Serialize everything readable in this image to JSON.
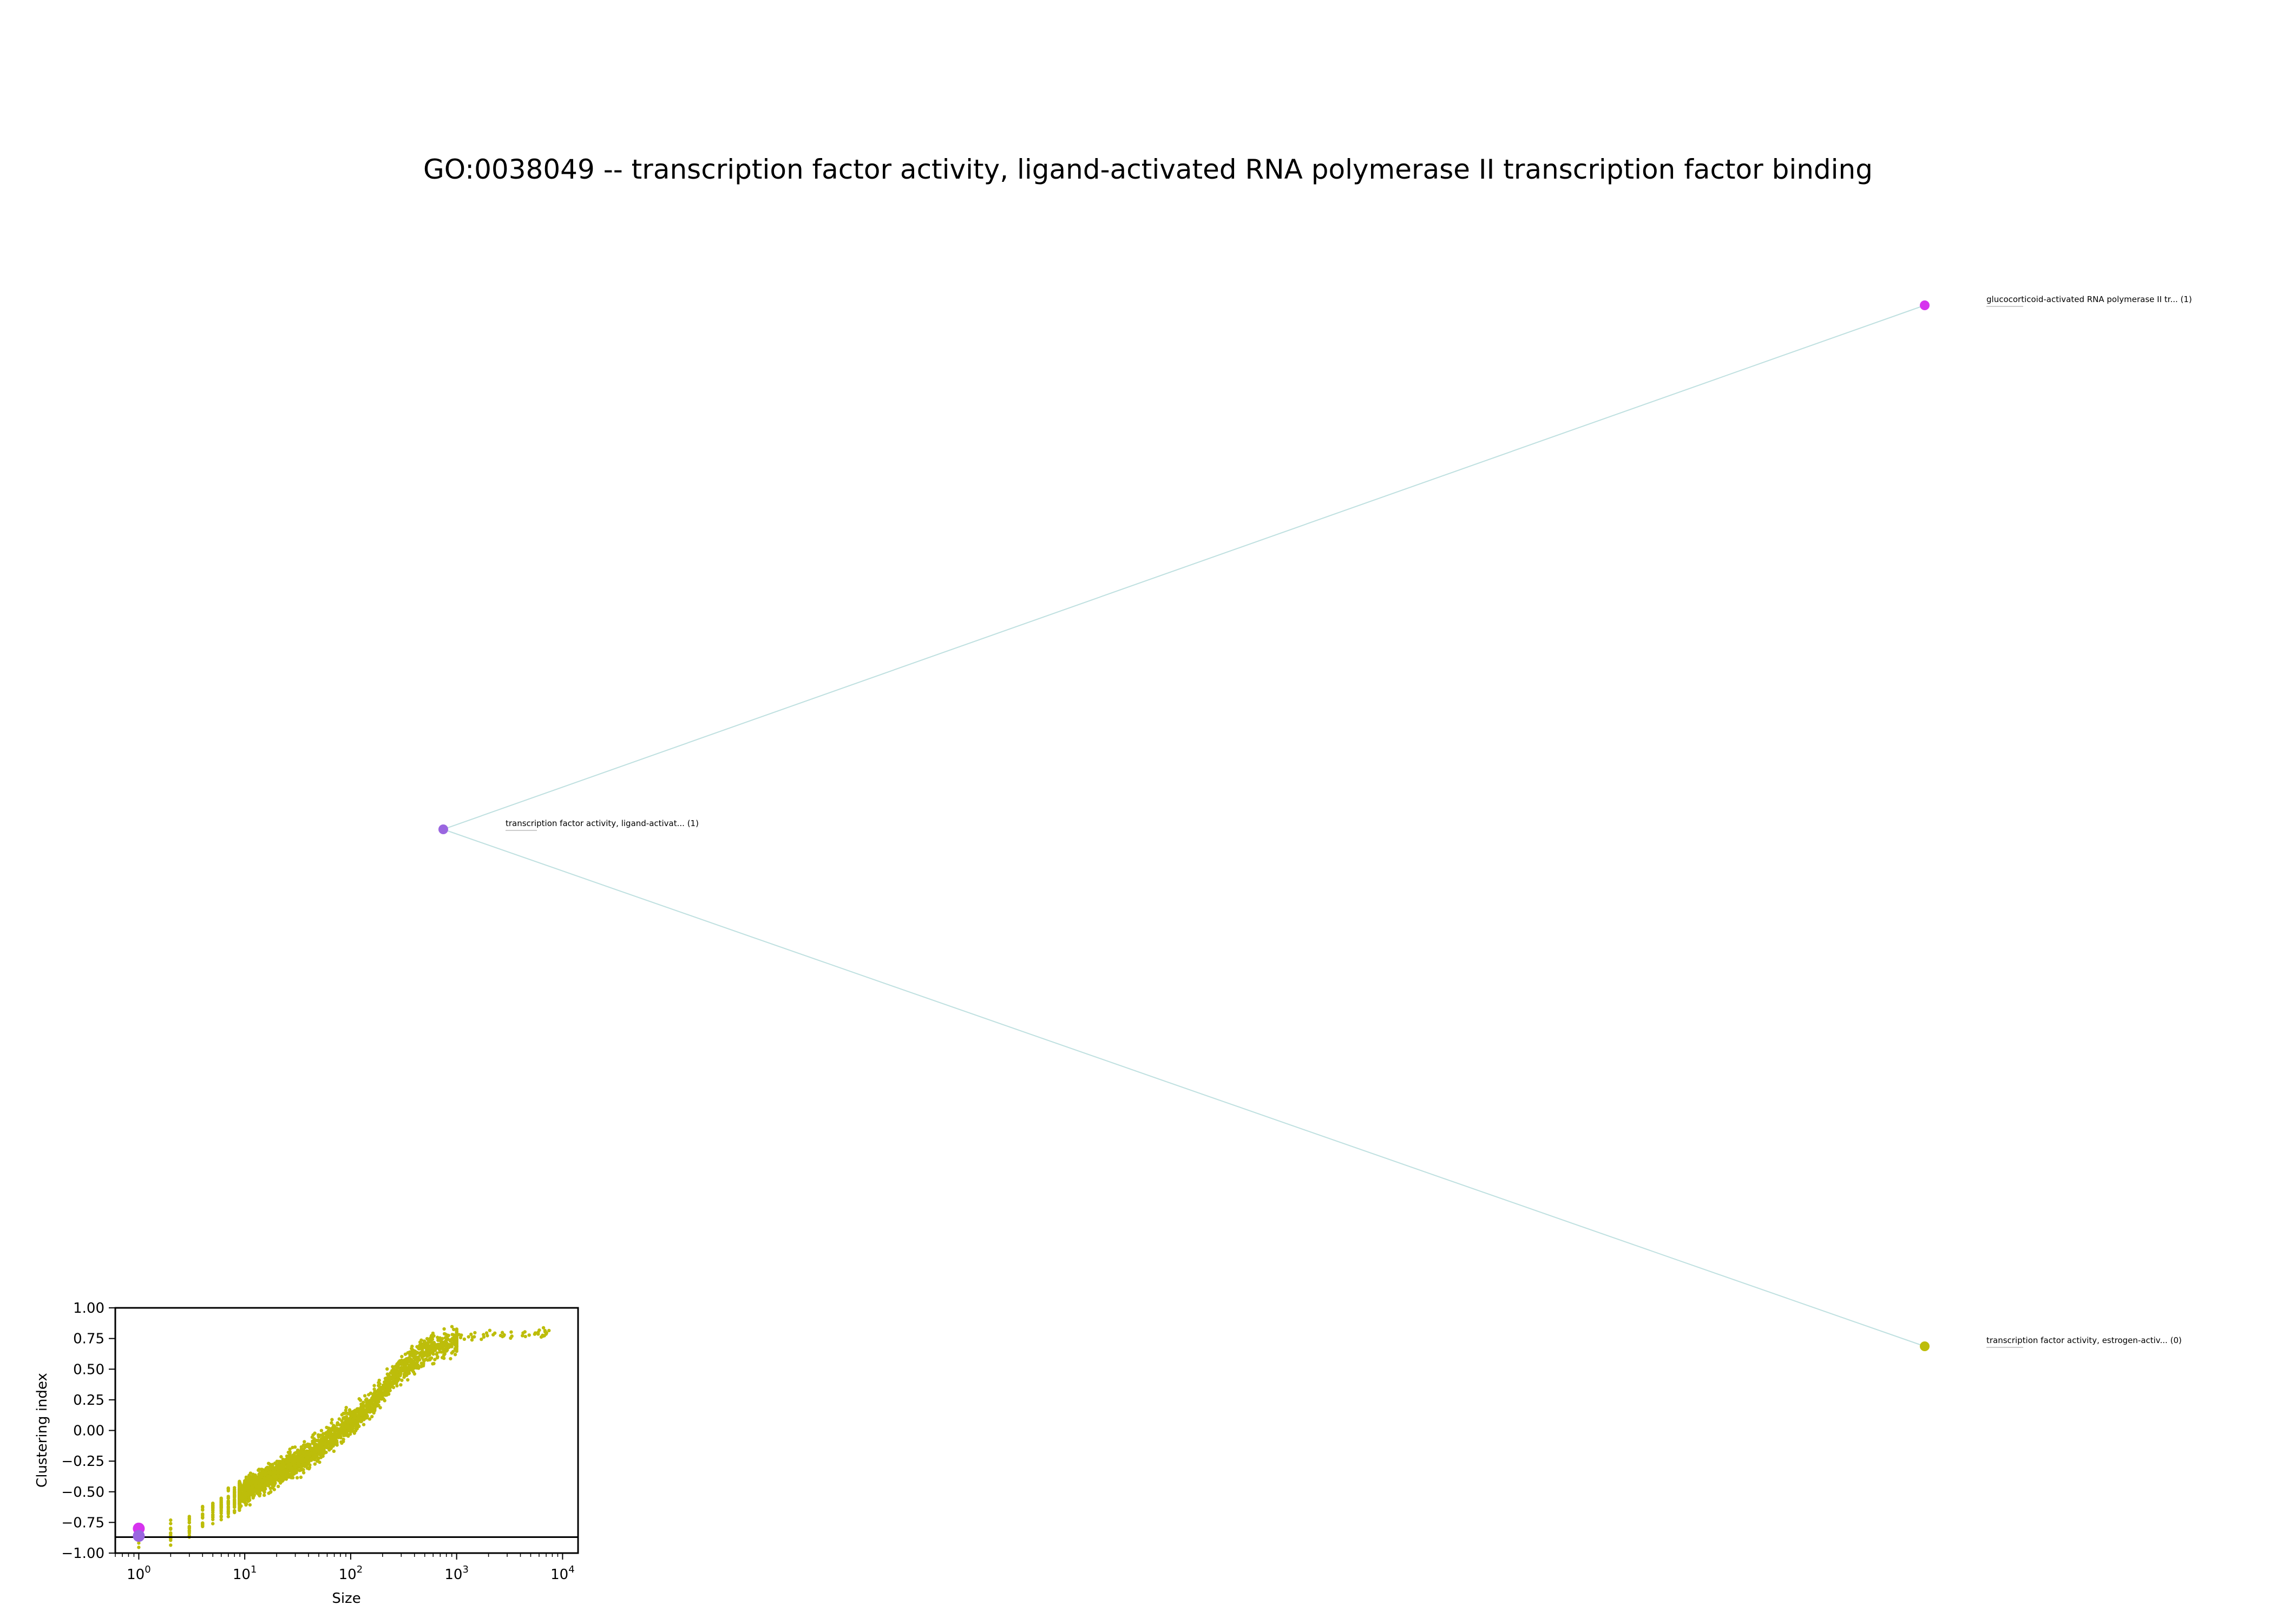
{
  "title": "GO:0038049 -- transcription factor activity, ligand-activated RNA polymerase II transcription factor binding",
  "colors": {
    "node_root": "#9a66e0",
    "node_gluco": "#d633ee",
    "node_estrogen": "#bdbd0a",
    "edge": "#bfe0e0",
    "scatter": "#bdbd0a",
    "highlight": "#d633ee",
    "highlight2": "#9a66e0"
  },
  "graph": {
    "nodes": [
      {
        "id": "root",
        "label": "transcription factor activity, ligand-activat... (1)",
        "color_key": "node_root"
      },
      {
        "id": "gluco",
        "label": "glucocorticoid-activated RNA polymerase II tr... (1)",
        "color_key": "node_gluco"
      },
      {
        "id": "estrogen",
        "label": "transcription factor activity, estrogen-activ... (0)",
        "color_key": "node_estrogen"
      }
    ],
    "edges": [
      {
        "from": "root",
        "to": "gluco"
      },
      {
        "from": "root",
        "to": "estrogen"
      }
    ]
  },
  "chart_data": {
    "type": "scatter",
    "xlabel": "Size",
    "ylabel": "Clustering index",
    "x_scale": "log",
    "xlim": [
      0.6,
      14000
    ],
    "ylim": [
      -1.0,
      1.0
    ],
    "x_ticks": [
      {
        "base": "10",
        "exp": "0"
      },
      {
        "base": "10",
        "exp": "1"
      },
      {
        "base": "10",
        "exp": "2"
      },
      {
        "base": "10",
        "exp": "3"
      },
      {
        "base": "10",
        "exp": "4"
      }
    ],
    "y_ticks": [
      "−1.00",
      "−0.75",
      "−0.50",
      "−0.25",
      "0.00",
      "0.25",
      "0.50",
      "0.75",
      "1.00"
    ],
    "y_tick_values": [
      -1.0,
      -0.75,
      -0.5,
      -0.25,
      0.0,
      0.25,
      0.5,
      0.75,
      1.0
    ],
    "hline": -0.87,
    "highlighted_points": [
      {
        "x": 1,
        "y": -0.8,
        "color_key": "highlight"
      },
      {
        "x": 1,
        "y": -0.86,
        "color_key": "highlight2"
      }
    ],
    "background_trend": [
      {
        "x": 1,
        "y": -0.9
      },
      {
        "x": 2,
        "y": -0.85
      },
      {
        "x": 3,
        "y": -0.8
      },
      {
        "x": 5,
        "y": -0.65
      },
      {
        "x": 10,
        "y": -0.5
      },
      {
        "x": 20,
        "y": -0.35
      },
      {
        "x": 40,
        "y": -0.2
      },
      {
        "x": 80,
        "y": 0.0
      },
      {
        "x": 150,
        "y": 0.2
      },
      {
        "x": 300,
        "y": 0.5
      },
      {
        "x": 600,
        "y": 0.68
      },
      {
        "x": 1500,
        "y": 0.78
      },
      {
        "x": 9000,
        "y": 0.8
      }
    ]
  }
}
